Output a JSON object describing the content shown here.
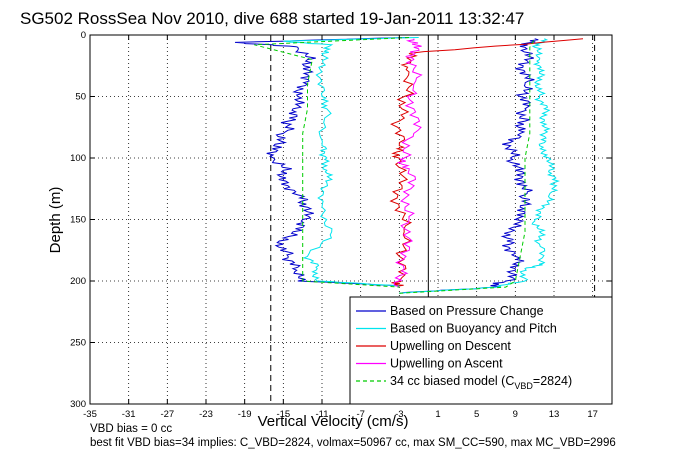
{
  "chart_data": {
    "type": "line",
    "title": "SG502 RossSea Nov 2010, dive 688 started 19-Jan-2011 13:32:47",
    "xlabel": "Vertical Velocity (cm/s)",
    "ylabel": "Depth (m)",
    "xlim": [
      -35,
      19
    ],
    "ylim": [
      300,
      0
    ],
    "y_reversed": true,
    "xticks": [
      "-35",
      "-31",
      "-27",
      "-23",
      "-19",
      "-15",
      "-11",
      "-7",
      "-3",
      "1",
      "5",
      "9",
      "13",
      "17"
    ],
    "yticks": [
      "0",
      "50",
      "100",
      "150",
      "200",
      "250",
      "300"
    ],
    "grid": true,
    "legend_position": "bottom-right",
    "reference_lines": {
      "solid_x": 0,
      "dashed_x": [
        -16.3,
        17.2
      ]
    },
    "legend": [
      {
        "label": "Based on Pressure Change",
        "color": "#0000cc",
        "style": "solid"
      },
      {
        "label": "Based on Buoyancy and Pitch",
        "color": "#00e5ee",
        "style": "solid"
      },
      {
        "label": "Upwelling on Descent",
        "color": "#dd0000",
        "style": "solid"
      },
      {
        "label": "Upwelling on Ascent",
        "color": "#ff00ff",
        "style": "solid"
      },
      {
        "label_main": "34 cc biased model (C",
        "label_sub": "VBD",
        "label_tail": "=2824)",
        "color": "#00cc00",
        "style": "dashed"
      }
    ],
    "series": [
      {
        "name": "Based on Pressure Change",
        "color": "#0000cc",
        "descent": {
          "depth": [
            2,
            6,
            10,
            20,
            30,
            40,
            50,
            60,
            70,
            80,
            90,
            100,
            110,
            120,
            130,
            140,
            150,
            160,
            170,
            180,
            190,
            200,
            204
          ],
          "x": [
            -2,
            -20,
            -13.5,
            -12.5,
            -12,
            -12.5,
            -13.5,
            -14,
            -14.5,
            -15,
            -16,
            -16,
            -15,
            -14.5,
            -13.5,
            -12.5,
            -13,
            -14,
            -15,
            -14.5,
            -14,
            -13.5,
            -3
          ]
        },
        "ascent": {
          "depth": [
            210,
            205,
            200,
            190,
            180,
            170,
            160,
            150,
            140,
            130,
            120,
            110,
            100,
            90,
            80,
            70,
            60,
            50,
            40,
            30,
            20,
            10,
            3
          ],
          "x": [
            -3,
            7,
            8,
            9,
            9,
            8.5,
            8.5,
            9,
            9.5,
            10,
            10,
            9,
            8.5,
            8.5,
            9.5,
            10,
            10,
            9.5,
            10,
            10,
            10,
            10,
            11
          ]
        }
      },
      {
        "name": "Based on Buoyancy and Pitch",
        "color": "#00e5ee",
        "descent": {
          "depth": [
            2,
            5,
            8,
            15,
            30,
            50,
            60,
            90,
            100,
            110,
            120,
            140,
            160,
            180,
            190,
            200,
            204
          ],
          "x": [
            -1,
            -15,
            -10,
            -11,
            -11,
            -11,
            -10.5,
            -11,
            -10.5,
            -10.5,
            -10.5,
            -11,
            -10,
            -12.5,
            -11.5,
            -11.5,
            -3
          ]
        },
        "ascent": {
          "depth": [
            210,
            205,
            200,
            190,
            185,
            170,
            160,
            150,
            140,
            130,
            120,
            110,
            100,
            90,
            80,
            70,
            60,
            50,
            40,
            30,
            20,
            10,
            3
          ],
          "x": [
            -3,
            7,
            10,
            10,
            12,
            11.5,
            11.5,
            11,
            12,
            12.5,
            13,
            12.5,
            12.5,
            11.5,
            12,
            12,
            12,
            11.5,
            11.5,
            11.5,
            11.5,
            11,
            12
          ]
        }
      },
      {
        "name": "Upwelling on Descent",
        "color": "#dd0000",
        "descent": {
          "depth": [
            3,
            15,
            30,
            50,
            70,
            90,
            100,
            120,
            140,
            160,
            180,
            200,
            204
          ],
          "x": [
            16,
            -2,
            -2,
            -2.5,
            -3,
            -3,
            -3,
            -3,
            -3,
            -2.5,
            -3,
            -3,
            -3
          ]
        }
      },
      {
        "name": "Upwelling on Ascent",
        "color": "#ff00ff",
        "ascent": {
          "depth": [
            205,
            190,
            170,
            150,
            130,
            110,
            100,
            80,
            60,
            40,
            20,
            10,
            3
          ],
          "x": [
            -3,
            -2.5,
            -2.5,
            -2,
            -2,
            -2,
            -2.5,
            -1.5,
            -1.5,
            -1.5,
            -1.5,
            -1.5,
            -1.5
          ]
        }
      },
      {
        "name": "34 cc biased model (CVBD=2824)",
        "color": "#00cc00",
        "descent": {
          "depth": [
            2,
            8,
            20,
            40,
            60,
            80,
            100,
            120,
            140,
            160,
            180,
            200,
            205
          ],
          "x": [
            -2,
            -18,
            -12,
            -12.5,
            -12.5,
            -13,
            -13,
            -13,
            -13,
            -13,
            -13,
            -13,
            -3
          ]
        },
        "ascent": {
          "depth": [
            210,
            205,
            200,
            180,
            160,
            140,
            120,
            100,
            80,
            60,
            40,
            20,
            10,
            3
          ],
          "x": [
            -3,
            8,
            9,
            9.5,
            10,
            10,
            10,
            10,
            10.5,
            10.5,
            10.5,
            10.5,
            10.5,
            11
          ]
        }
      }
    ]
  },
  "footer": {
    "line1": "VBD bias = 0 cc",
    "line2": "best fit VBD bias=34 implies: C_VBD=2824, volmax=50967 cc, max SM_CC=590, max MC_VBD=2996"
  }
}
